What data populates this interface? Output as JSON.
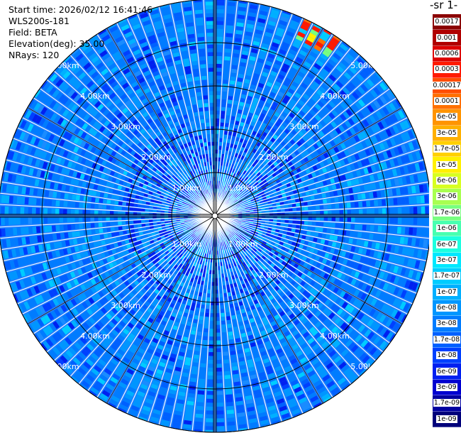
{
  "header": {
    "start_time": "Start time: 2026/02/12 16:41:46",
    "instrument": "WLS200s-181",
    "field": "Field: BETA",
    "elevation": "Elevation(deg): 35.00",
    "nrays": "NRays: 120"
  },
  "colorbar": {
    "unit_label": "-1 sr-",
    "levels": [
      {
        "label": "0.0017",
        "color": "#8b0000"
      },
      {
        "label": "0.001",
        "color": "#b00000"
      },
      {
        "label": "0.0006",
        "color": "#dd0000"
      },
      {
        "label": "0.0003",
        "color": "#ff1a00"
      },
      {
        "label": "0.00017",
        "color": "#ff4d00"
      },
      {
        "label": "0.0001",
        "color": "#ff7000"
      },
      {
        "label": "6e-05",
        "color": "#ff9400"
      },
      {
        "label": "3e-05",
        "color": "#ffb000"
      },
      {
        "label": "1.7e-05",
        "color": "#ffd000"
      },
      {
        "label": "1e-05",
        "color": "#fff000"
      },
      {
        "label": "6e-06",
        "color": "#d8ff20"
      },
      {
        "label": "3e-06",
        "color": "#a8ff50"
      },
      {
        "label": "1.7e-06",
        "color": "#78ff80"
      },
      {
        "label": "1e-06",
        "color": "#48ffb0"
      },
      {
        "label": "6e-07",
        "color": "#1cffe0"
      },
      {
        "label": "3e-07",
        "color": "#00e8ff"
      },
      {
        "label": "1.7e-07",
        "color": "#00ccff"
      },
      {
        "label": "1e-07",
        "color": "#00b0ff"
      },
      {
        "label": "6e-08",
        "color": "#0096ff"
      },
      {
        "label": "3e-08",
        "color": "#007cff"
      },
      {
        "label": "1.7e-08",
        "color": "#0060ff"
      },
      {
        "label": "1e-08",
        "color": "#0040ff"
      },
      {
        "label": "6e-09",
        "color": "#0020f0"
      },
      {
        "label": "3e-09",
        "color": "#0000d0"
      },
      {
        "label": "1.7e-09",
        "color": "#0000a0"
      },
      {
        "label": "1e-09",
        "color": "#00007a"
      }
    ]
  },
  "chart_data": {
    "type": "heatmap",
    "subtype": "polar_ppi",
    "n_rays": 120,
    "range_rings_km": [
      1,
      2,
      3,
      4,
      5
    ],
    "range_labels": [
      "1.00km",
      "2.00km",
      "3.00km",
      "4.00km",
      "5.00km"
    ],
    "max_range_km": 5.0,
    "background_level": "3e-08",
    "hotspot": {
      "azimuth_deg": [
        24,
        36
      ],
      "range_km": [
        4.5,
        5.4
      ],
      "peak_level": "0.0003"
    },
    "grid": true
  }
}
